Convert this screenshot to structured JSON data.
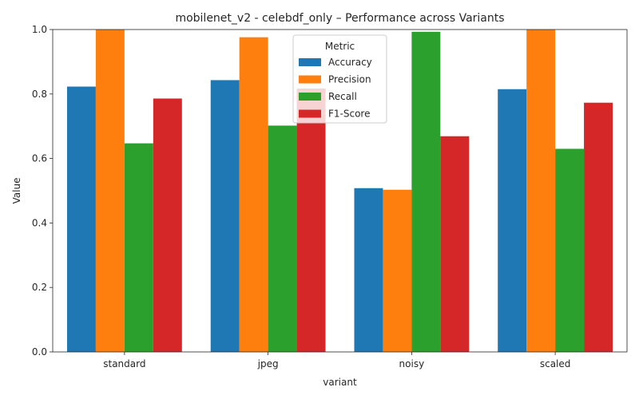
{
  "chart_data": {
    "type": "bar",
    "title": "mobilenet_v2 - celebdf_only – Performance across Variants",
    "xlabel": "variant",
    "ylabel": "Value",
    "ylim": [
      0,
      1.0
    ],
    "yticks": [
      "0.0",
      "0.2",
      "0.4",
      "0.6",
      "0.8",
      "1.0"
    ],
    "categories": [
      "standard",
      "jpeg",
      "noisy",
      "scaled"
    ],
    "legend": {
      "title": "Metric",
      "placement": "top-center"
    },
    "grid": false,
    "series": [
      {
        "name": "Accuracy",
        "color": "#1f77b4",
        "values": [
          0.823,
          0.843,
          0.508,
          0.815
        ]
      },
      {
        "name": "Precision",
        "color": "#ff7f0e",
        "values": [
          1.0,
          0.976,
          0.503,
          1.0
        ]
      },
      {
        "name": "Recall",
        "color": "#2ca02c",
        "values": [
          0.647,
          0.702,
          0.993,
          0.63
        ]
      },
      {
        "name": "F1-Score",
        "color": "#d62728",
        "values": [
          0.786,
          0.817,
          0.669,
          0.773
        ]
      }
    ]
  }
}
